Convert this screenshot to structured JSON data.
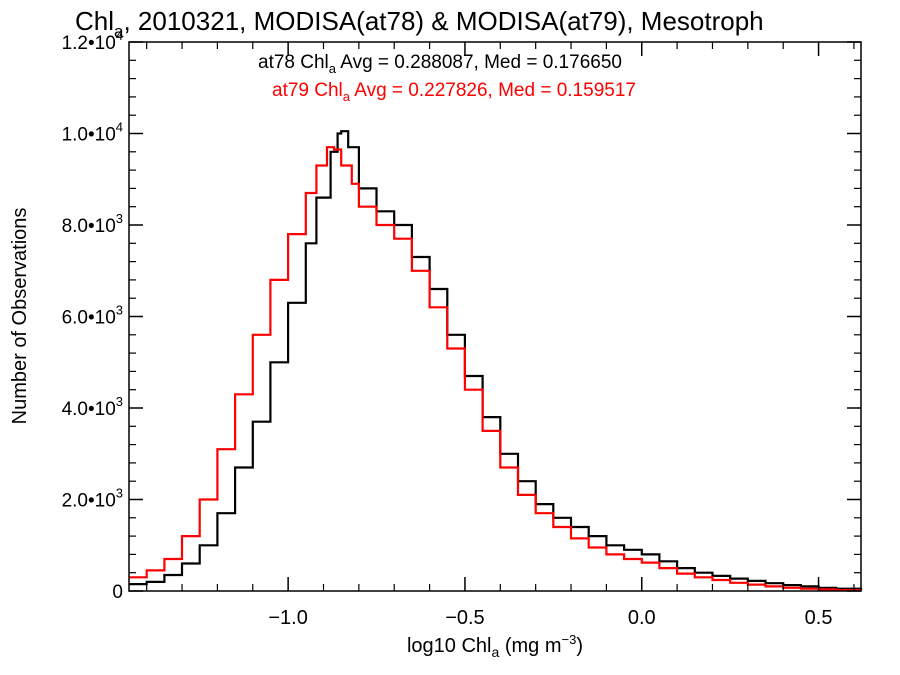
{
  "chart_data": {
    "type": "line",
    "title": {
      "pre": "Chl",
      "sub": "a",
      "post": ", 2010321, MODISA(at78) & MODISA(at79), Mesotroph"
    },
    "xlabel": {
      "pre": "log10 Chl",
      "sub": "a",
      "mid": " (mg m",
      "sup": "−3",
      "post": ")"
    },
    "ylabel": "Number of Observations",
    "xlim": [
      -1.45,
      0.62
    ],
    "ylim": [
      0,
      12000
    ],
    "x_ticks": [
      {
        "value": -1.0,
        "label": "−1.0"
      },
      {
        "value": -0.5,
        "label": "−0.5"
      },
      {
        "value": 0.0,
        "label": "0.0"
      },
      {
        "value": 0.5,
        "label": "0.5"
      }
    ],
    "y_ticks": [
      {
        "value": 0,
        "mant": "0",
        "exp": ""
      },
      {
        "value": 2000,
        "mant": "2.0•10",
        "exp": "3"
      },
      {
        "value": 4000,
        "mant": "4.0•10",
        "exp": "3"
      },
      {
        "value": 6000,
        "mant": "6.0•10",
        "exp": "3"
      },
      {
        "value": 8000,
        "mant": "8.0•10",
        "exp": "3"
      },
      {
        "value": 10000,
        "mant": "1.0•10",
        "exp": "4"
      },
      {
        "value": 12000,
        "mant": "1.2•10",
        "exp": "4"
      }
    ],
    "grid": false,
    "legend_position": "top",
    "colors": {
      "at78": "#000000",
      "at79": "#ff0000"
    },
    "series": [
      {
        "name": "at78",
        "color": "#000000",
        "stats_label": {
          "pre": "at78 Chl",
          "sub": "a",
          "post": " Avg = 0.288087, Med = 0.176650"
        },
        "x": [
          -1.45,
          -1.4,
          -1.35,
          -1.3,
          -1.25,
          -1.2,
          -1.15,
          -1.1,
          -1.05,
          -1.0,
          -0.95,
          -0.92,
          -0.88,
          -0.86,
          -0.85,
          -0.83,
          -0.8,
          -0.75,
          -0.7,
          -0.65,
          -0.6,
          -0.55,
          -0.5,
          -0.45,
          -0.4,
          -0.35,
          -0.3,
          -0.25,
          -0.2,
          -0.15,
          -0.1,
          -0.05,
          0.0,
          0.05,
          0.1,
          0.15,
          0.2,
          0.25,
          0.3,
          0.35,
          0.4,
          0.45,
          0.5,
          0.55,
          0.62
        ],
        "values": [
          150,
          200,
          350,
          600,
          1000,
          1700,
          2700,
          3700,
          5000,
          6300,
          7600,
          8600,
          9600,
          10000,
          10050,
          9700,
          8800,
          8300,
          8000,
          7300,
          6600,
          5600,
          4700,
          3800,
          3000,
          2400,
          1900,
          1600,
          1400,
          1200,
          1000,
          900,
          800,
          650,
          500,
          400,
          330,
          270,
          220,
          170,
          130,
          100,
          70,
          50,
          30
        ]
      },
      {
        "name": "at79",
        "color": "#ff0000",
        "stats_label": {
          "pre": "at79 Chl",
          "sub": "a",
          "post": " Avg = 0.227826, Med = 0.159517"
        },
        "x": [
          -1.45,
          -1.4,
          -1.35,
          -1.3,
          -1.25,
          -1.2,
          -1.15,
          -1.1,
          -1.05,
          -1.0,
          -0.95,
          -0.92,
          -0.89,
          -0.87,
          -0.85,
          -0.82,
          -0.8,
          -0.75,
          -0.7,
          -0.65,
          -0.6,
          -0.55,
          -0.5,
          -0.45,
          -0.4,
          -0.35,
          -0.3,
          -0.25,
          -0.2,
          -0.15,
          -0.1,
          -0.05,
          0.0,
          0.05,
          0.1,
          0.15,
          0.2,
          0.25,
          0.3,
          0.35,
          0.4,
          0.45,
          0.5,
          0.55,
          0.62
        ],
        "values": [
          300,
          450,
          700,
          1200,
          2000,
          3100,
          4300,
          5600,
          6800,
          7800,
          8700,
          9300,
          9700,
          9650,
          9300,
          8900,
          8400,
          8000,
          7700,
          7000,
          6200,
          5300,
          4400,
          3500,
          2700,
          2100,
          1700,
          1400,
          1150,
          950,
          800,
          700,
          620,
          500,
          380,
          300,
          240,
          180,
          140,
          100,
          70,
          50,
          35,
          20,
          10
        ]
      }
    ]
  }
}
